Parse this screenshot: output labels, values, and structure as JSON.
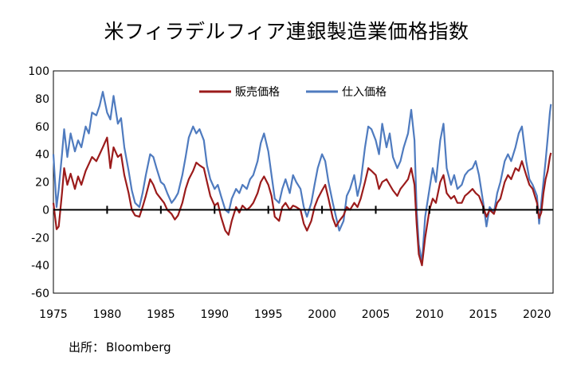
{
  "chart_data": {
    "type": "line",
    "title": "米フィラデルフィア連銀製造業価格指数",
    "source_label": "出所：",
    "source_name": "Bloomberg",
    "xlim": [
      1975,
      2021.5
    ],
    "ylim": [
      -60,
      100
    ],
    "y_ticks": [
      100,
      80,
      60,
      40,
      20,
      0,
      -20,
      -40,
      -60
    ],
    "x_ticks": [
      1975,
      1980,
      1985,
      1990,
      1995,
      2000,
      2005,
      2010,
      2015,
      2020
    ],
    "grid": false,
    "legend_position": "top-center",
    "series": [
      {
        "name": "販売価格",
        "color": "#9b1b1b",
        "points": [
          [
            1975.0,
            5
          ],
          [
            1975.3,
            -14
          ],
          [
            1975.5,
            -12
          ],
          [
            1975.8,
            12
          ],
          [
            1976.0,
            30
          ],
          [
            1976.3,
            18
          ],
          [
            1976.6,
            26
          ],
          [
            1977.0,
            15
          ],
          [
            1977.3,
            24
          ],
          [
            1977.6,
            18
          ],
          [
            1978.0,
            28
          ],
          [
            1978.3,
            33
          ],
          [
            1978.6,
            38
          ],
          [
            1979.0,
            35
          ],
          [
            1979.3,
            40
          ],
          [
            1979.6,
            45
          ],
          [
            1980.0,
            52
          ],
          [
            1980.3,
            30
          ],
          [
            1980.6,
            45
          ],
          [
            1981.0,
            38
          ],
          [
            1981.3,
            40
          ],
          [
            1981.6,
            25
          ],
          [
            1982.0,
            12
          ],
          [
            1982.3,
            0
          ],
          [
            1982.6,
            -4
          ],
          [
            1983.0,
            -5
          ],
          [
            1983.3,
            2
          ],
          [
            1983.6,
            10
          ],
          [
            1984.0,
            22
          ],
          [
            1984.3,
            18
          ],
          [
            1984.6,
            12
          ],
          [
            1985.0,
            8
          ],
          [
            1985.3,
            5
          ],
          [
            1985.6,
            0
          ],
          [
            1986.0,
            -3
          ],
          [
            1986.3,
            -7
          ],
          [
            1986.6,
            -4
          ],
          [
            1987.0,
            5
          ],
          [
            1987.3,
            15
          ],
          [
            1987.6,
            22
          ],
          [
            1988.0,
            28
          ],
          [
            1988.3,
            34
          ],
          [
            1988.6,
            32
          ],
          [
            1989.0,
            30
          ],
          [
            1989.3,
            20
          ],
          [
            1989.6,
            10
          ],
          [
            1990.0,
            3
          ],
          [
            1990.3,
            5
          ],
          [
            1990.6,
            -5
          ],
          [
            1991.0,
            -15
          ],
          [
            1991.3,
            -18
          ],
          [
            1991.6,
            -8
          ],
          [
            1992.0,
            2
          ],
          [
            1992.3,
            -2
          ],
          [
            1992.6,
            3
          ],
          [
            1993.0,
            0
          ],
          [
            1993.3,
            2
          ],
          [
            1993.6,
            5
          ],
          [
            1994.0,
            12
          ],
          [
            1994.3,
            20
          ],
          [
            1994.6,
            24
          ],
          [
            1995.0,
            18
          ],
          [
            1995.3,
            10
          ],
          [
            1995.6,
            -5
          ],
          [
            1996.0,
            -8
          ],
          [
            1996.3,
            2
          ],
          [
            1996.6,
            5
          ],
          [
            1997.0,
            0
          ],
          [
            1997.3,
            3
          ],
          [
            1997.6,
            2
          ],
          [
            1998.0,
            0
          ],
          [
            1998.3,
            -10
          ],
          [
            1998.6,
            -15
          ],
          [
            1999.0,
            -8
          ],
          [
            1999.3,
            2
          ],
          [
            1999.6,
            8
          ],
          [
            2000.0,
            14
          ],
          [
            2000.3,
            18
          ],
          [
            2000.6,
            8
          ],
          [
            2001.0,
            -6
          ],
          [
            2001.3,
            -12
          ],
          [
            2001.6,
            -8
          ],
          [
            2002.0,
            -4
          ],
          [
            2002.3,
            2
          ],
          [
            2002.6,
            0
          ],
          [
            2003.0,
            5
          ],
          [
            2003.3,
            2
          ],
          [
            2003.6,
            8
          ],
          [
            2004.0,
            20
          ],
          [
            2004.3,
            30
          ],
          [
            2004.6,
            28
          ],
          [
            2005.0,
            25
          ],
          [
            2005.3,
            15
          ],
          [
            2005.6,
            20
          ],
          [
            2006.0,
            22
          ],
          [
            2006.3,
            18
          ],
          [
            2006.6,
            14
          ],
          [
            2007.0,
            10
          ],
          [
            2007.3,
            15
          ],
          [
            2007.6,
            18
          ],
          [
            2008.0,
            22
          ],
          [
            2008.3,
            30
          ],
          [
            2008.6,
            18
          ],
          [
            2008.8,
            -10
          ],
          [
            2009.0,
            -32
          ],
          [
            2009.3,
            -40
          ],
          [
            2009.6,
            -20
          ],
          [
            2010.0,
            0
          ],
          [
            2010.3,
            8
          ],
          [
            2010.6,
            5
          ],
          [
            2011.0,
            20
          ],
          [
            2011.3,
            25
          ],
          [
            2011.6,
            12
          ],
          [
            2012.0,
            8
          ],
          [
            2012.3,
            10
          ],
          [
            2012.6,
            5
          ],
          [
            2013.0,
            5
          ],
          [
            2013.3,
            10
          ],
          [
            2013.6,
            12
          ],
          [
            2014.0,
            15
          ],
          [
            2014.3,
            12
          ],
          [
            2014.6,
            10
          ],
          [
            2015.0,
            2
          ],
          [
            2015.3,
            -5
          ],
          [
            2015.6,
            0
          ],
          [
            2016.0,
            -3
          ],
          [
            2016.3,
            5
          ],
          [
            2016.6,
            8
          ],
          [
            2017.0,
            20
          ],
          [
            2017.3,
            25
          ],
          [
            2017.6,
            22
          ],
          [
            2018.0,
            30
          ],
          [
            2018.3,
            28
          ],
          [
            2018.6,
            35
          ],
          [
            2019.0,
            25
          ],
          [
            2019.3,
            18
          ],
          [
            2019.6,
            15
          ],
          [
            2020.0,
            5
          ],
          [
            2020.2,
            -6
          ],
          [
            2020.4,
            -2
          ],
          [
            2020.6,
            12
          ],
          [
            2020.8,
            22
          ],
          [
            2021.0,
            28
          ],
          [
            2021.2,
            38
          ],
          [
            2021.3,
            41
          ]
        ]
      },
      {
        "name": "仕入価格",
        "color": "#4f7bbf",
        "points": [
          [
            1975.0,
            40
          ],
          [
            1975.3,
            2
          ],
          [
            1975.5,
            15
          ],
          [
            1975.8,
            40
          ],
          [
            1976.0,
            58
          ],
          [
            1976.3,
            38
          ],
          [
            1976.6,
            55
          ],
          [
            1977.0,
            42
          ],
          [
            1977.3,
            50
          ],
          [
            1977.6,
            45
          ],
          [
            1978.0,
            60
          ],
          [
            1978.3,
            55
          ],
          [
            1978.6,
            70
          ],
          [
            1979.0,
            68
          ],
          [
            1979.3,
            75
          ],
          [
            1979.6,
            85
          ],
          [
            1980.0,
            70
          ],
          [
            1980.3,
            65
          ],
          [
            1980.6,
            82
          ],
          [
            1981.0,
            62
          ],
          [
            1981.3,
            66
          ],
          [
            1981.6,
            45
          ],
          [
            1982.0,
            28
          ],
          [
            1982.3,
            14
          ],
          [
            1982.6,
            5
          ],
          [
            1983.0,
            2
          ],
          [
            1983.3,
            12
          ],
          [
            1983.6,
            25
          ],
          [
            1984.0,
            40
          ],
          [
            1984.3,
            38
          ],
          [
            1984.6,
            30
          ],
          [
            1985.0,
            20
          ],
          [
            1985.3,
            18
          ],
          [
            1985.6,
            12
          ],
          [
            1986.0,
            5
          ],
          [
            1986.3,
            8
          ],
          [
            1986.6,
            12
          ],
          [
            1987.0,
            25
          ],
          [
            1987.3,
            38
          ],
          [
            1987.6,
            52
          ],
          [
            1988.0,
            60
          ],
          [
            1988.3,
            55
          ],
          [
            1988.6,
            58
          ],
          [
            1989.0,
            50
          ],
          [
            1989.3,
            32
          ],
          [
            1989.6,
            22
          ],
          [
            1990.0,
            15
          ],
          [
            1990.3,
            18
          ],
          [
            1990.6,
            10
          ],
          [
            1991.0,
            0
          ],
          [
            1991.3,
            -2
          ],
          [
            1991.6,
            8
          ],
          [
            1992.0,
            15
          ],
          [
            1992.3,
            12
          ],
          [
            1992.6,
            18
          ],
          [
            1993.0,
            15
          ],
          [
            1993.3,
            22
          ],
          [
            1993.6,
            25
          ],
          [
            1994.0,
            35
          ],
          [
            1994.3,
            48
          ],
          [
            1994.6,
            55
          ],
          [
            1995.0,
            42
          ],
          [
            1995.3,
            25
          ],
          [
            1995.6,
            8
          ],
          [
            1996.0,
            5
          ],
          [
            1996.3,
            15
          ],
          [
            1996.6,
            22
          ],
          [
            1997.0,
            12
          ],
          [
            1997.3,
            25
          ],
          [
            1997.6,
            20
          ],
          [
            1998.0,
            15
          ],
          [
            1998.3,
            2
          ],
          [
            1998.6,
            -5
          ],
          [
            1999.0,
            5
          ],
          [
            1999.3,
            18
          ],
          [
            1999.6,
            30
          ],
          [
            2000.0,
            40
          ],
          [
            2000.3,
            35
          ],
          [
            2000.6,
            20
          ],
          [
            2001.0,
            5
          ],
          [
            2001.3,
            -5
          ],
          [
            2001.6,
            -15
          ],
          [
            2002.0,
            -8
          ],
          [
            2002.3,
            10
          ],
          [
            2002.6,
            15
          ],
          [
            2003.0,
            25
          ],
          [
            2003.3,
            10
          ],
          [
            2003.6,
            20
          ],
          [
            2004.0,
            45
          ],
          [
            2004.3,
            60
          ],
          [
            2004.6,
            58
          ],
          [
            2005.0,
            50
          ],
          [
            2005.3,
            40
          ],
          [
            2005.6,
            62
          ],
          [
            2006.0,
            45
          ],
          [
            2006.3,
            55
          ],
          [
            2006.6,
            38
          ],
          [
            2007.0,
            30
          ],
          [
            2007.3,
            35
          ],
          [
            2007.6,
            45
          ],
          [
            2008.0,
            55
          ],
          [
            2008.3,
            72
          ],
          [
            2008.6,
            50
          ],
          [
            2008.8,
            0
          ],
          [
            2009.0,
            -25
          ],
          [
            2009.3,
            -38
          ],
          [
            2009.6,
            -5
          ],
          [
            2010.0,
            15
          ],
          [
            2010.3,
            30
          ],
          [
            2010.6,
            20
          ],
          [
            2011.0,
            50
          ],
          [
            2011.3,
            62
          ],
          [
            2011.6,
            30
          ],
          [
            2012.0,
            18
          ],
          [
            2012.3,
            25
          ],
          [
            2012.6,
            15
          ],
          [
            2013.0,
            18
          ],
          [
            2013.3,
            25
          ],
          [
            2013.6,
            28
          ],
          [
            2014.0,
            30
          ],
          [
            2014.3,
            35
          ],
          [
            2014.6,
            25
          ],
          [
            2015.0,
            5
          ],
          [
            2015.3,
            -12
          ],
          [
            2015.6,
            2
          ],
          [
            2016.0,
            -2
          ],
          [
            2016.3,
            12
          ],
          [
            2016.6,
            20
          ],
          [
            2017.0,
            35
          ],
          [
            2017.3,
            40
          ],
          [
            2017.6,
            35
          ],
          [
            2018.0,
            45
          ],
          [
            2018.3,
            55
          ],
          [
            2018.6,
            60
          ],
          [
            2019.0,
            35
          ],
          [
            2019.3,
            22
          ],
          [
            2019.6,
            18
          ],
          [
            2020.0,
            10
          ],
          [
            2020.2,
            -10
          ],
          [
            2020.4,
            5
          ],
          [
            2020.6,
            20
          ],
          [
            2020.8,
            35
          ],
          [
            2021.0,
            52
          ],
          [
            2021.2,
            70
          ],
          [
            2021.3,
            76
          ]
        ]
      }
    ]
  }
}
